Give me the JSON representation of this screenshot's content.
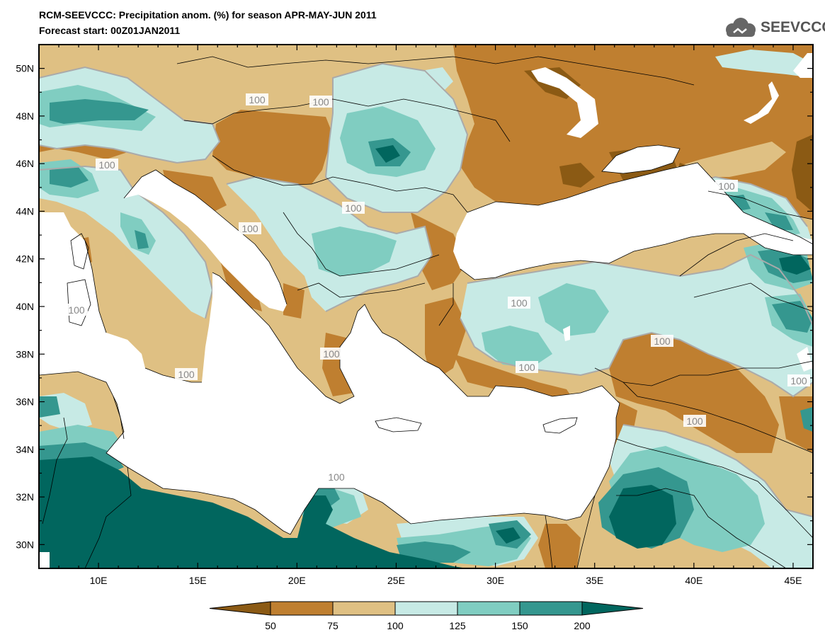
{
  "header": {
    "title": "RCM-SEEVCCC: Precipitation anom. (%) for season APR-MAY-JUN 2011",
    "subtitle": "Forecast start: 00Z01JAN2011",
    "logo_text": "SEEVCCC"
  },
  "map": {
    "lon_range": [
      7,
      46
    ],
    "lat_range": [
      29,
      51
    ],
    "lon_ticks": [
      "10E",
      "15E",
      "20E",
      "25E",
      "30E",
      "35E",
      "40E",
      "45E"
    ],
    "lat_ticks": [
      "50N",
      "48N",
      "46N",
      "44N",
      "42N",
      "40N",
      "38N",
      "36N",
      "34N",
      "32N",
      "30N"
    ],
    "contour_label": "100",
    "colors": {
      "below_50": "#8b5a14",
      "50_75": "#bf7f30",
      "75_100": "#dfc083",
      "100_125": "#c7eae5",
      "125_150": "#80cdc1",
      "150_200": "#35978f",
      "above_200": "#01665e",
      "contour": "#aaaaaa"
    }
  },
  "colorbar": {
    "labels": [
      "50",
      "75",
      "100",
      "125",
      "150",
      "200"
    ],
    "colors": [
      "#8b5a14",
      "#bf7f30",
      "#dfc083",
      "#c7eae5",
      "#80cdc1",
      "#35978f",
      "#01665e"
    ]
  }
}
